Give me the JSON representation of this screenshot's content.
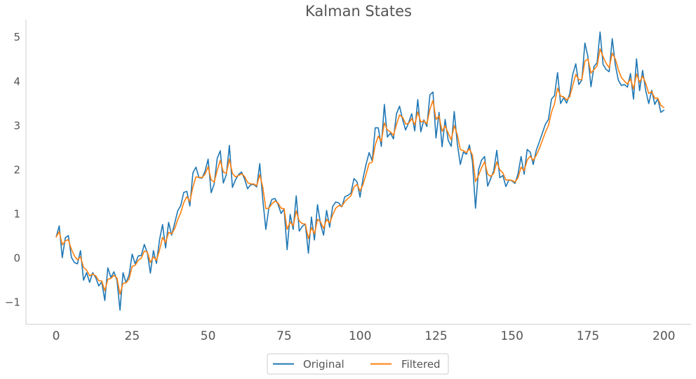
{
  "chart_data": {
    "type": "line",
    "title": "Kalman States",
    "xlabel": "",
    "ylabel": "",
    "xlim": [
      -9.95,
      208.95
    ],
    "ylim": [
      -1.5,
      5.4
    ],
    "x_ticks": [
      0,
      25,
      50,
      75,
      100,
      125,
      150,
      175,
      200
    ],
    "x_tick_labels": [
      "0",
      "25",
      "50",
      "75",
      "100",
      "125",
      "150",
      "175",
      "200"
    ],
    "y_ticks": [
      -1,
      0,
      1,
      2,
      3,
      4,
      5
    ],
    "y_tick_labels": [
      "−1",
      "0",
      "1",
      "2",
      "3",
      "4",
      "5"
    ],
    "grid": false,
    "legend_position": "bottom-center",
    "x_start": 0,
    "series": [
      {
        "name": "Original",
        "color": "#1f77b4",
        "values": [
          0.48,
          0.73,
          0.01,
          0.46,
          0.51,
          0.02,
          -0.1,
          -0.13,
          0.17,
          -0.5,
          -0.33,
          -0.55,
          -0.33,
          -0.44,
          -0.63,
          -0.54,
          -0.96,
          -0.22,
          -0.44,
          -0.31,
          -0.5,
          -1.18,
          -0.33,
          -0.56,
          -0.38,
          0.09,
          -0.13,
          0.05,
          0.06,
          0.31,
          0.12,
          -0.34,
          0.17,
          -0.12,
          0.41,
          0.76,
          0.23,
          0.81,
          0.52,
          0.79,
          1.07,
          1.19,
          1.49,
          1.51,
          1.18,
          1.93,
          2.06,
          1.82,
          1.81,
          1.97,
          2.24,
          1.48,
          1.68,
          2.26,
          2.43,
          1.7,
          1.89,
          2.55,
          1.6,
          1.77,
          1.89,
          1.95,
          1.79,
          1.57,
          1.66,
          1.67,
          1.61,
          2.14,
          1.32,
          0.65,
          1.14,
          1.33,
          1.35,
          1.22,
          1.01,
          1.11,
          0.19,
          0.99,
          0.65,
          1.41,
          0.61,
          0.72,
          0.77,
          0.11,
          0.93,
          0.41,
          1.21,
          0.77,
          0.52,
          1.08,
          0.7,
          1.17,
          1.27,
          1.25,
          1.16,
          1.39,
          1.42,
          1.47,
          1.8,
          1.73,
          1.38,
          1.81,
          2.13,
          2.39,
          2.2,
          2.95,
          2.95,
          2.53,
          3.48,
          2.74,
          2.83,
          2.7,
          3.27,
          3.44,
          3.14,
          2.9,
          3.07,
          3.27,
          2.88,
          3.59,
          2.86,
          3.13,
          2.98,
          3.7,
          3.76,
          2.72,
          3.3,
          2.52,
          3.14,
          2.67,
          2.53,
          3.32,
          2.6,
          2.12,
          2.4,
          2.35,
          2.56,
          2.18,
          1.13,
          2.0,
          2.22,
          2.3,
          1.63,
          1.8,
          1.98,
          2.44,
          1.82,
          1.87,
          1.62,
          1.77,
          1.75,
          1.69,
          1.91,
          2.3,
          1.9,
          2.46,
          2.4,
          2.12,
          2.44,
          2.63,
          2.83,
          3.03,
          3.14,
          3.6,
          3.68,
          4.2,
          3.5,
          3.63,
          3.51,
          3.72,
          4.16,
          4.4,
          3.93,
          4.03,
          4.87,
          4.56,
          3.88,
          4.34,
          4.42,
          5.12,
          4.38,
          4.27,
          4.22,
          4.97,
          4.38,
          4.03,
          3.91,
          3.93,
          3.87,
          4.18,
          3.6,
          4.51,
          3.79,
          4.25,
          3.8,
          3.5,
          3.8,
          3.48,
          3.61,
          3.3,
          3.35
        ]
      },
      {
        "name": "Filtered",
        "color": "#ff7f0e",
        "values": [
          0.48,
          0.6,
          0.3,
          0.39,
          0.42,
          0.2,
          0.05,
          -0.04,
          0.03,
          -0.21,
          -0.27,
          -0.4,
          -0.36,
          -0.4,
          -0.51,
          -0.52,
          -0.74,
          -0.48,
          -0.46,
          -0.39,
          -0.45,
          -0.82,
          -0.57,
          -0.56,
          -0.47,
          -0.19,
          -0.16,
          -0.05,
          0.0,
          0.16,
          0.14,
          -0.1,
          0.03,
          -0.05,
          0.18,
          0.47,
          0.35,
          0.58,
          0.55,
          0.67,
          0.87,
          1.03,
          1.26,
          1.39,
          1.28,
          1.61,
          1.84,
          1.83,
          1.82,
          1.9,
          2.07,
          1.77,
          1.72,
          1.99,
          2.21,
          1.95,
          1.92,
          2.24,
          1.92,
          1.84,
          1.87,
          1.91,
          1.85,
          1.71,
          1.68,
          1.68,
          1.64,
          1.89,
          1.6,
          1.12,
          1.13,
          1.23,
          1.29,
          1.25,
          1.13,
          1.12,
          0.65,
          0.82,
          0.73,
          1.07,
          0.84,
          0.78,
          0.77,
          0.44,
          0.69,
          0.55,
          0.88,
          0.82,
          0.67,
          0.88,
          0.79,
          0.98,
          1.13,
          1.19,
          1.17,
          1.28,
          1.35,
          1.41,
          1.61,
          1.67,
          1.52,
          1.67,
          1.9,
          2.15,
          2.17,
          2.56,
          2.76,
          2.64,
          3.06,
          2.9,
          2.86,
          2.78,
          3.03,
          3.24,
          3.19,
          3.04,
          3.05,
          3.16,
          3.02,
          3.31,
          3.08,
          3.11,
          3.04,
          3.37,
          3.57,
          3.14,
          3.22,
          2.87,
          3.0,
          2.83,
          2.68,
          3.0,
          2.8,
          2.46,
          2.43,
          2.39,
          2.48,
          2.33,
          1.73,
          1.87,
          2.05,
          2.18,
          1.9,
          1.85,
          1.92,
          2.18,
          2.0,
          1.93,
          1.77,
          1.77,
          1.76,
          1.72,
          1.82,
          2.06,
          1.98,
          2.22,
          2.31,
          2.21,
          2.33,
          2.48,
          2.66,
          2.85,
          3.0,
          3.3,
          3.49,
          3.85,
          3.67,
          3.65,
          3.58,
          3.65,
          3.91,
          4.16,
          4.04,
          4.04,
          4.46,
          4.51,
          4.19,
          4.27,
          4.35,
          4.74,
          4.56,
          4.41,
          4.31,
          4.64,
          4.51,
          4.27,
          4.09,
          4.01,
          3.94,
          4.06,
          3.83,
          4.17,
          3.98,
          4.12,
          3.96,
          3.73,
          3.77,
          3.62,
          3.62,
          3.46,
          3.41
        ]
      }
    ]
  }
}
